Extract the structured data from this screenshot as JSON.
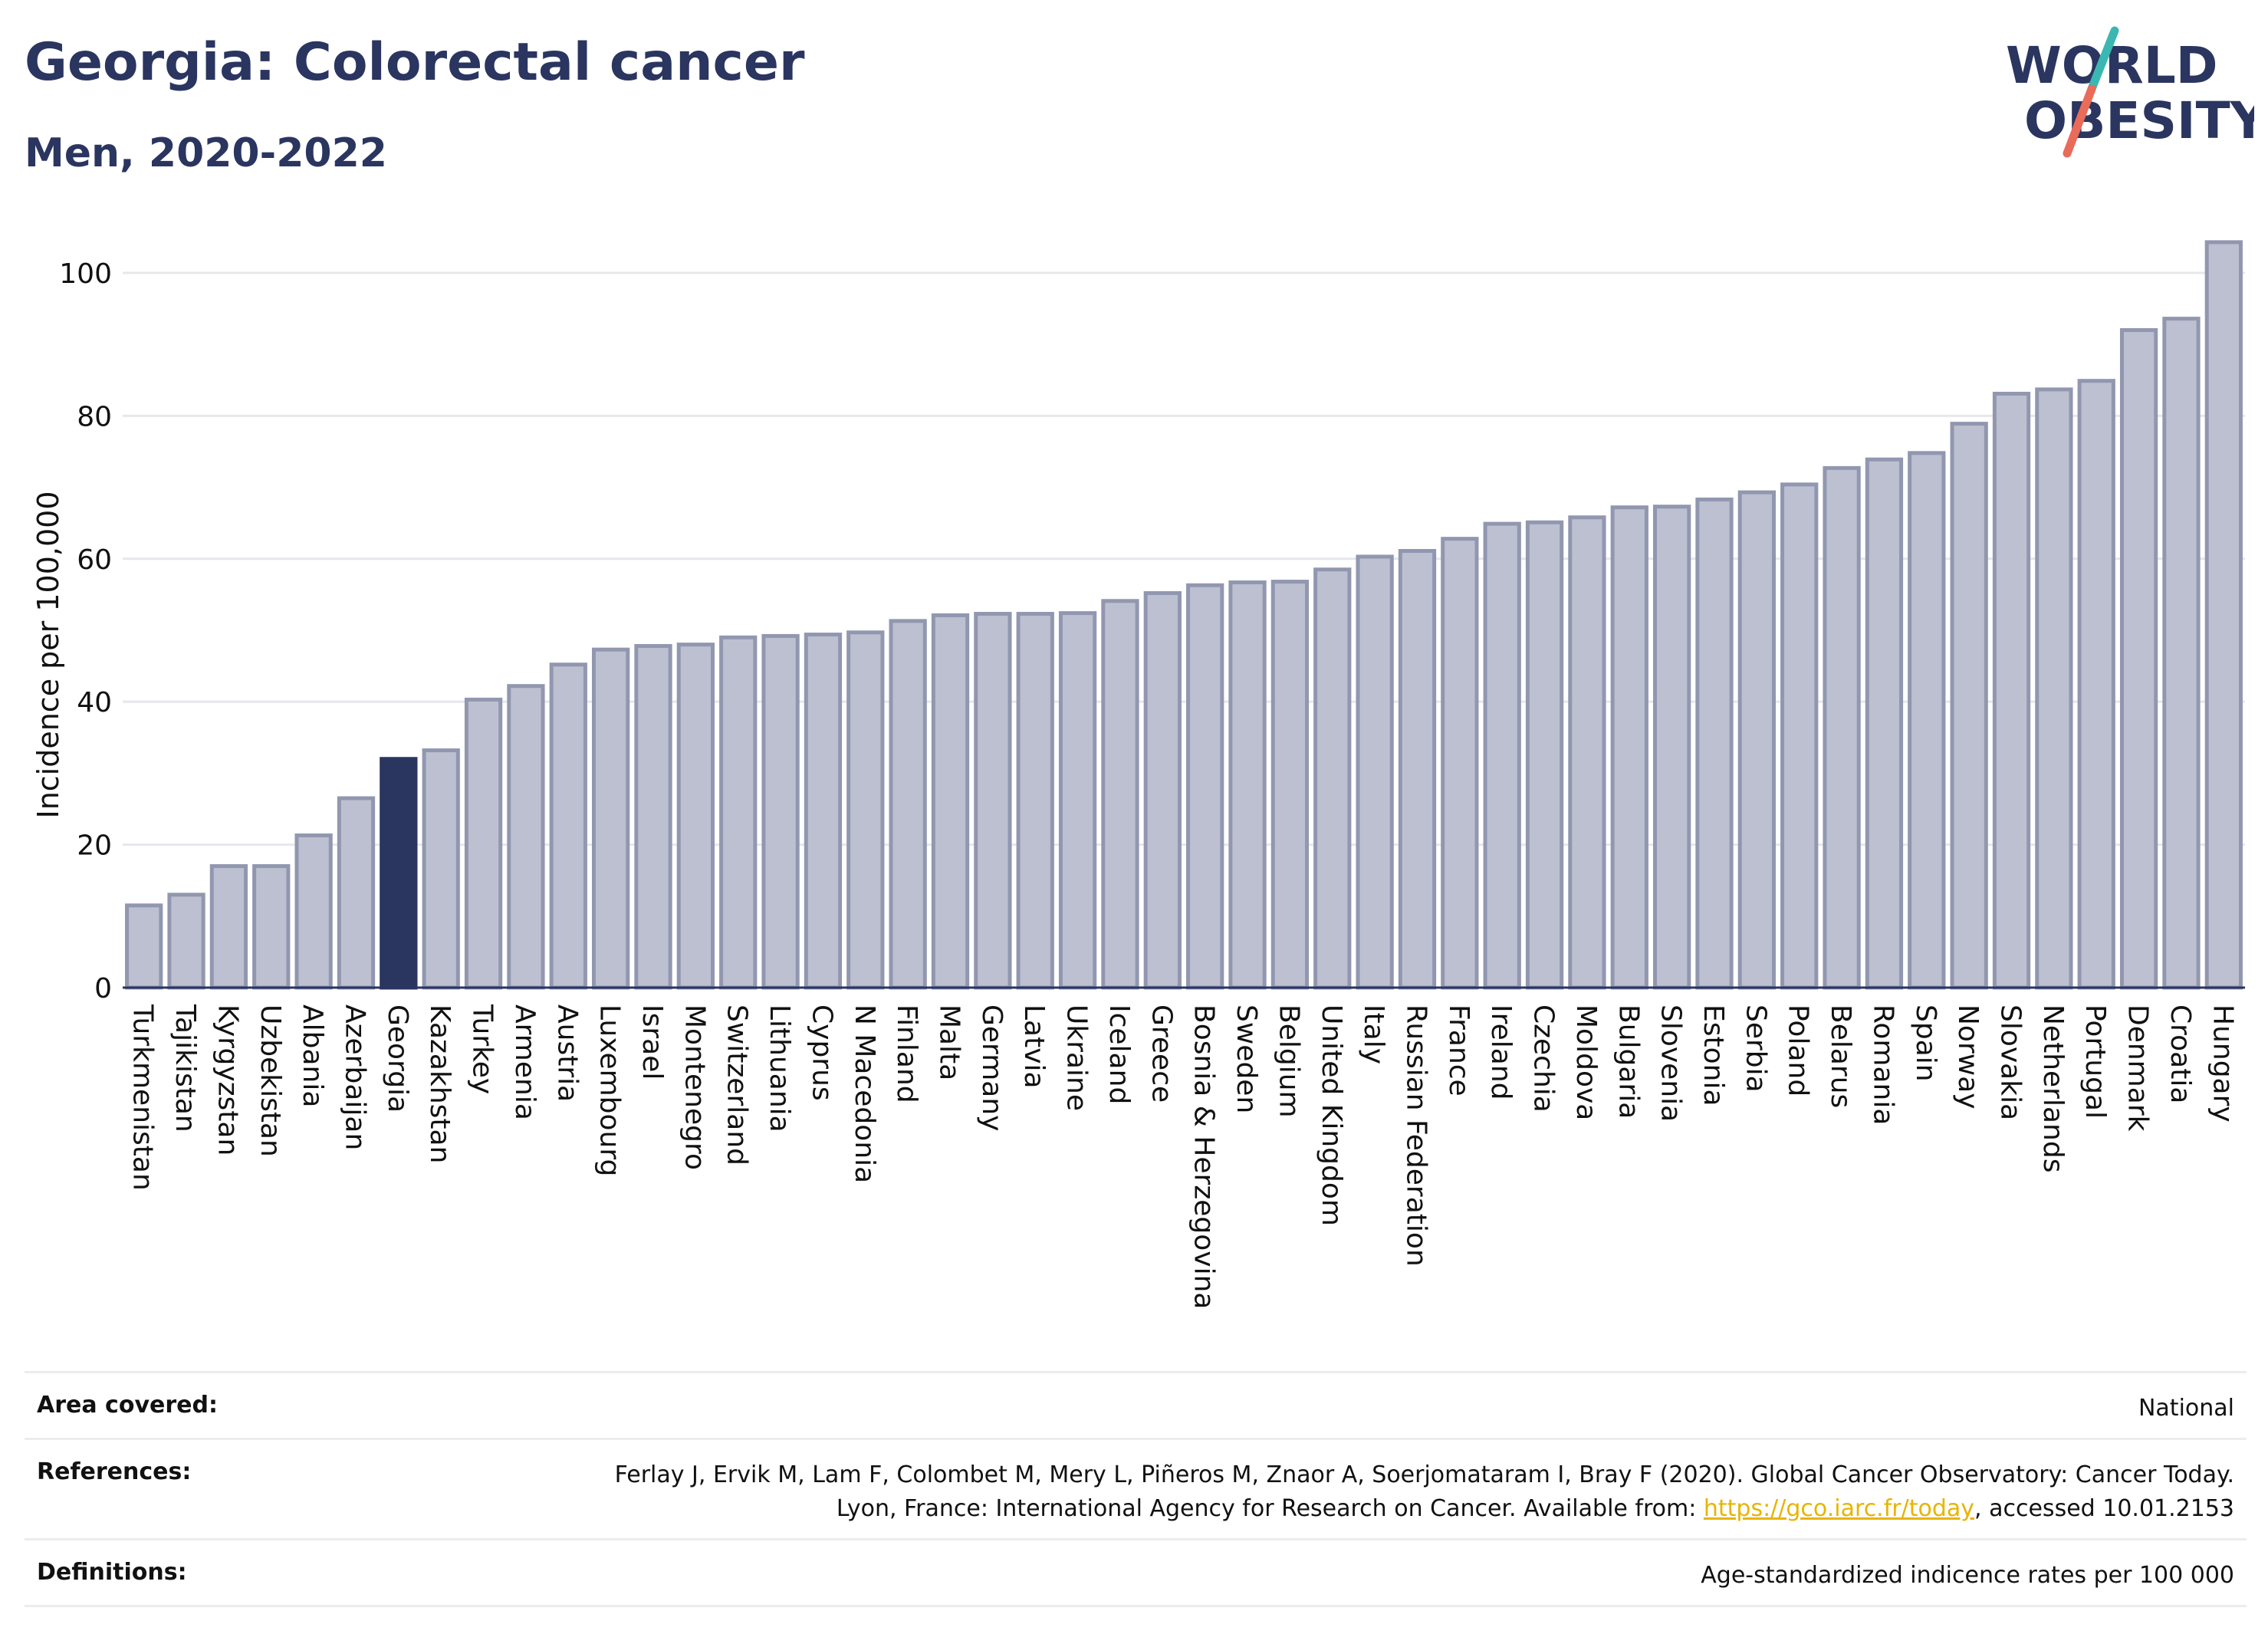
{
  "header": {
    "title": "Georgia: Colorectal cancer",
    "subtitle": "Men, 2020-2022"
  },
  "logo": {
    "line1": "WORLD",
    "line2": "OBESITY"
  },
  "colors": {
    "bar": "#bcc0d0",
    "bar_border": "#9297b0",
    "highlight": "#2a3560",
    "text": "#2a3560"
  },
  "chart_data": {
    "type": "bar",
    "ylabel": "Incidence per 100,000",
    "ylim": [
      0,
      106
    ],
    "yticks": [
      0,
      20,
      40,
      60,
      80,
      100
    ],
    "grid": true,
    "highlight": "Georgia",
    "categories": [
      "Turkmenistan",
      "Tajikistan",
      "Kyrgyzstan",
      "Uzbekistan",
      "Albania",
      "Azerbaijan",
      "Georgia",
      "Kazakhstan",
      "Turkey",
      "Armenia",
      "Austria",
      "Luxembourg",
      "Israel",
      "Montenegro",
      "Switzerland",
      "Lithuania",
      "Cyprus",
      "N Macedonia",
      "Finland",
      "Malta",
      "Germany",
      "Latvia",
      "Ukraine",
      "Iceland",
      "Greece",
      "Bosnia & Herzegovina",
      "Sweden",
      "Belgium",
      "United Kingdom",
      "Italy",
      "Russian Federation",
      "France",
      "Ireland",
      "Czechia",
      "Moldova",
      "Bulgaria",
      "Slovenia",
      "Estonia",
      "Serbia",
      "Poland",
      "Belarus",
      "Romania",
      "Spain",
      "Norway",
      "Slovakia",
      "Netherlands",
      "Portugal",
      "Denmark",
      "Croatia",
      "Hungary"
    ],
    "values": [
      11.5,
      13,
      17,
      17,
      21.3,
      26.5,
      32,
      33.2,
      40.3,
      42.2,
      45.2,
      47.3,
      47.8,
      48,
      49,
      49.2,
      49.4,
      49.7,
      51.3,
      52.1,
      52.3,
      52.3,
      52.4,
      54.1,
      55.2,
      56.3,
      56.7,
      56.8,
      58.5,
      60.3,
      61.1,
      62.8,
      64.9,
      65.1,
      65.8,
      67.2,
      67.3,
      68.3,
      69.3,
      70.4,
      72.7,
      73.9,
      74.8,
      78.9,
      83.1,
      83.7,
      84.9,
      92,
      93.6,
      104.3
    ]
  },
  "info": {
    "rows": [
      {
        "label": "Area covered:",
        "value": "National"
      },
      {
        "label": "References:",
        "value_before": "Ferlay J, Ervik M, Lam F, Colombet M, Mery L, Piñeros M, Znaor A, Soerjomataram I, Bray F (2020). Global Cancer Observatory: Cancer Today. Lyon, France: International Agency for Research on Cancer. Available from: ",
        "link": "https://gco.iarc.fr/today",
        "value_after": ", accessed 10.01.2153"
      },
      {
        "label": "Definitions:",
        "value": "Age-standardized indicence rates per 100 000"
      }
    ]
  }
}
